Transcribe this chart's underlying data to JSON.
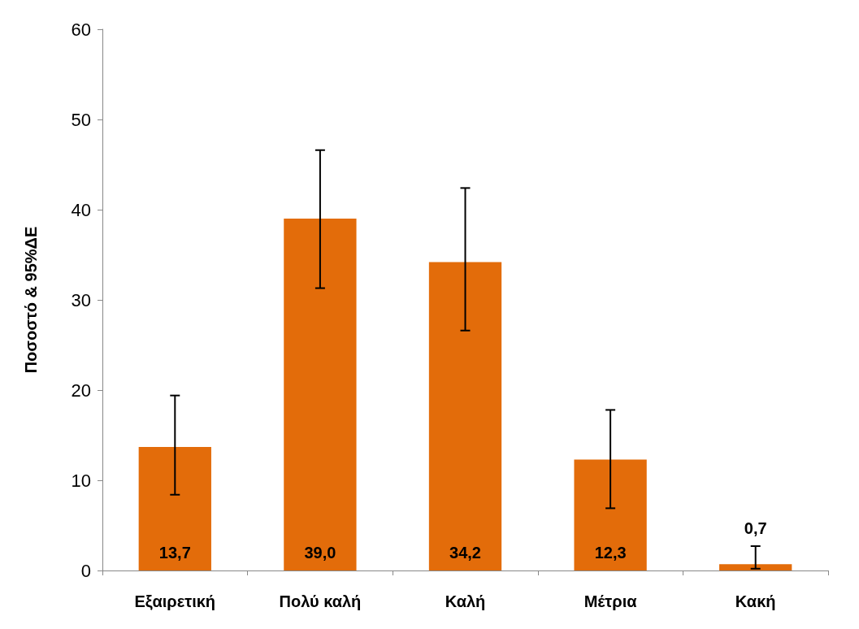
{
  "chart_data": {
    "type": "bar",
    "ylabel": "Ποσοστό & 95%ΔΕ",
    "categories": [
      "Εξαιρετική",
      "Πολύ καλή",
      "Καλή",
      "Μέτρια",
      "Κακή"
    ],
    "values": [
      13.7,
      39.0,
      34.2,
      12.3,
      0.7
    ],
    "value_labels": [
      "13,7",
      "39,0",
      "34,2",
      "12,3",
      "0,7"
    ],
    "errors": [
      [
        8.4,
        19.4
      ],
      [
        31.3,
        46.6
      ],
      [
        26.6,
        42.4
      ],
      [
        6.9,
        17.8
      ],
      [
        0.2,
        2.7
      ]
    ],
    "color": "#e36c0a",
    "ylim": [
      0,
      60
    ],
    "yticks": [
      0,
      10,
      20,
      30,
      40,
      50,
      60
    ],
    "grid": false
  }
}
